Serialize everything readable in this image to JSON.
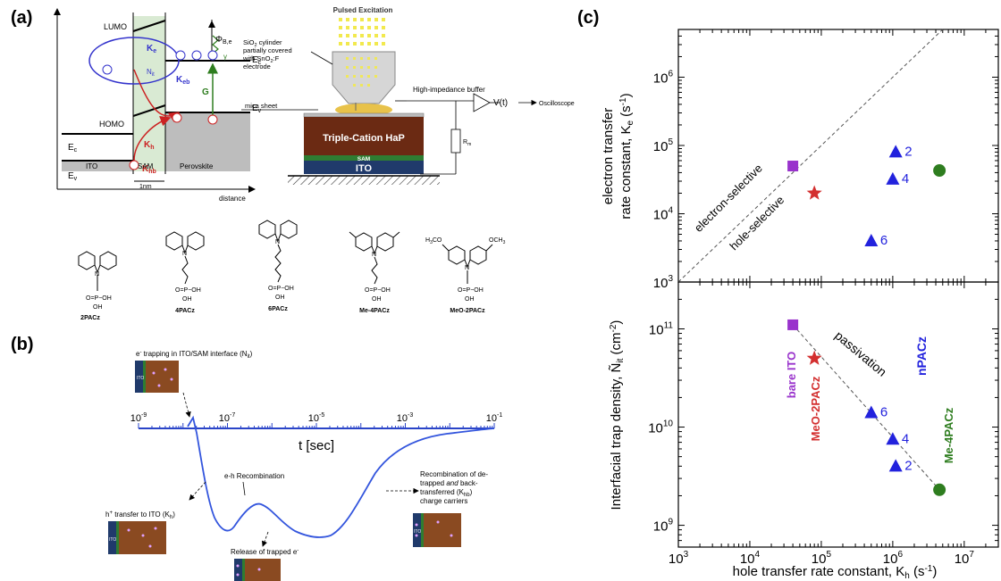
{
  "panel_a": {
    "label": "(a)",
    "energy": {
      "lumo": "LUMO",
      "homo": "HOMO",
      "ke": "K",
      "ke_sub": "e",
      "keb": "K",
      "keb_sub": "eb",
      "kh": "K",
      "kh_sub": "h",
      "khb": "K",
      "khb_sub": "hb",
      "nit": "N",
      "nit_sub": "it",
      "phi": "Φ",
      "phi_sub": "B,e",
      "ec": "E",
      "ec_sub": "c",
      "ev": "E",
      "ev_sub": "v",
      "g": "G",
      "gamma": "γ",
      "ito": "ITO",
      "sam": "SAM",
      "perovskite": "Perovskite",
      "width": "1nm",
      "distance": "distance"
    },
    "setup": {
      "pulsed": "Pulsed Excitation",
      "cyl_1": "SiO",
      "cyl_1b": "2",
      "cyl_1c": " cylinder",
      "cyl_2": "partially covered",
      "cyl_3": "with SnO",
      "cyl_3b": "2",
      "cyl_3c": ":F",
      "cyl_4": "electrode",
      "buffer": "High-impedance buffer",
      "vt": "V(t)",
      "osc": "Oscilloscope",
      "mica": "mica sheet",
      "hap": "Triple-Cation HaP",
      "sam": "SAM",
      "ito": "ITO",
      "rm": "R",
      "rm_sub": "m"
    },
    "molecules": {
      "m1": "2PACz",
      "m2": "4PACz",
      "m3": "6PACz",
      "m4": "Me-4PACz",
      "m5": "MeO-2PACz",
      "po": "O=P−OH",
      "oh": "OH",
      "n": "N",
      "h3co": "H",
      "h3co_sub": "3",
      "h3co_end": "CO",
      "och3": "OCH",
      "och3_sub": "3"
    }
  },
  "panel_b": {
    "label": "(b)",
    "ticks": [
      {
        "base": "10",
        "exp": "-9"
      },
      {
        "base": "10",
        "exp": "-7"
      },
      {
        "base": "10",
        "exp": "-5"
      },
      {
        "base": "10",
        "exp": "-3"
      },
      {
        "base": "10",
        "exp": "-1"
      }
    ],
    "axis_label": "t [sec]",
    "trap_1": "e",
    "trap_sup": "-",
    "trap_2": " trapping in ITO/SAM interface (N",
    "trap_sub": "it",
    "trap_3": ")",
    "hplus_1": "h",
    "hplus_sup": "+",
    "hplus_2": " transfer to ITO (K",
    "hplus_sub": "h",
    "hplus_3": ")",
    "eh": "e-h Recombination",
    "release_1": "Release of trapped e",
    "release_sup": "-",
    "recomb_1": "Recombination of de-",
    "recomb_2a": "trapped ",
    "recomb_2b": "and",
    "recomb_2c": " back-",
    "recomb_3a": "transferred (K",
    "recomb_3b": "hb",
    "recomb_3c": ")",
    "recomb_4": "charge carriers",
    "ito": "ITO"
  },
  "panel_c": {
    "label": "(c)",
    "top_ylabel_1": "electron transfer",
    "top_ylabel_2a": "rate constant, K",
    "top_ylabel_2b": "e",
    "top_ylabel_2c": " (s",
    "top_ylabel_2d": "-1",
    "top_ylabel_2e": ")",
    "bot_ylabel_a": "Interfacial trap density, ",
    "bot_ylabel_b": "Ñ",
    "bot_ylabel_c": "it",
    "bot_ylabel_d": " (cm",
    "bot_ylabel_e": "-2",
    "bot_ylabel_f": ")",
    "xlabel_a": "hole transfer rate constant, K",
    "xlabel_b": "h",
    "xlabel_c": " (s",
    "xlabel_d": "-1",
    "xlabel_e": ")",
    "electron_selective": "electron-selective",
    "hole_selective": "hole-selective",
    "passivation": "passivation",
    "bare_ito": "bare ITO",
    "meo": "MeO-2PACz",
    "npacz": "nPACz",
    "me4": "Me-4PACz",
    "colors": {
      "bare": "#9933cc",
      "meo": "#d32f2f",
      "npacz": "#2222dd",
      "me4": "#2e7d1f"
    }
  },
  "chart_data": [
    {
      "type": "scatter",
      "xlim": [
        1000,
        30000000
      ],
      "ylim": [
        1000,
        5000000
      ],
      "xscale": "log",
      "yscale": "log",
      "yticks": [
        {
          "base": "10",
          "exp": "3"
        },
        {
          "base": "10",
          "exp": "4"
        },
        {
          "base": "10",
          "exp": "5"
        },
        {
          "base": "10",
          "exp": "6"
        }
      ],
      "points": [
        {
          "x": 40000,
          "y": 50000,
          "marker": "square",
          "color": "#9933cc",
          "label": ""
        },
        {
          "x": 80000,
          "y": 20000,
          "marker": "star",
          "color": "#d32f2f",
          "label": ""
        },
        {
          "x": 1100000,
          "y": 80000,
          "marker": "triangle",
          "color": "#2222dd",
          "label": "2"
        },
        {
          "x": 1000000,
          "y": 32000,
          "marker": "triangle",
          "color": "#2222dd",
          "label": "4"
        },
        {
          "x": 500000,
          "y": 4000,
          "marker": "triangle",
          "color": "#2222dd",
          "label": "6"
        },
        {
          "x": 4500000,
          "y": 43000,
          "marker": "circle",
          "color": "#2e7d1f",
          "label": ""
        }
      ],
      "diagonal": [
        [
          1000,
          1000
        ],
        [
          5000000,
          5000000
        ]
      ]
    },
    {
      "type": "scatter",
      "xlim": [
        1000,
        30000000
      ],
      "ylim": [
        600000000,
        300000000000
      ],
      "xscale": "log",
      "yscale": "log",
      "xticks": [
        {
          "base": "10",
          "exp": "3"
        },
        {
          "base": "10",
          "exp": "4"
        },
        {
          "base": "10",
          "exp": "5"
        },
        {
          "base": "10",
          "exp": "6"
        },
        {
          "base": "10",
          "exp": "7"
        }
      ],
      "yticks": [
        {
          "base": "10",
          "exp": "9"
        },
        {
          "base": "10",
          "exp": "10"
        },
        {
          "base": "10",
          "exp": "11"
        }
      ],
      "points": [
        {
          "x": 40000,
          "y": 110000000000,
          "marker": "square",
          "color": "#9933cc",
          "label": ""
        },
        {
          "x": 80000,
          "y": 50000000000,
          "marker": "star",
          "color": "#d32f2f",
          "label": ""
        },
        {
          "x": 500000,
          "y": 14000000000,
          "marker": "triangle",
          "color": "#2222dd",
          "label": "6"
        },
        {
          "x": 1000000,
          "y": 7500000000,
          "marker": "triangle",
          "color": "#2222dd",
          "label": "4"
        },
        {
          "x": 1100000,
          "y": 4000000000,
          "marker": "triangle",
          "color": "#2222dd",
          "label": "2"
        },
        {
          "x": 4500000,
          "y": 2300000000,
          "marker": "circle",
          "color": "#2e7d1f",
          "label": ""
        }
      ],
      "trend": [
        [
          40000,
          110000000000
        ],
        [
          4500000,
          2300000000
        ]
      ]
    }
  ]
}
